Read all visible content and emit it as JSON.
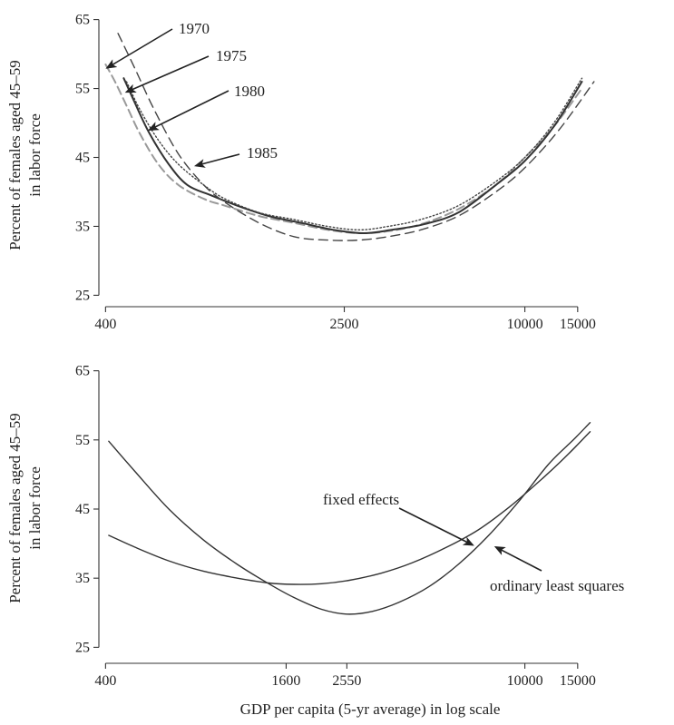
{
  "chart_data": [
    {
      "type": "line",
      "title": "",
      "ylabel": [
        "Percent of females aged 45–59",
        "in labor force"
      ],
      "xlabel": "",
      "x_scale": "log",
      "x_ticks": [
        400,
        2500,
        10000,
        15000
      ],
      "x_tick_labels": [
        "400",
        "2500",
        "10000",
        "15000"
      ],
      "y_ticks": [
        25,
        35,
        45,
        55,
        65
      ],
      "y_tick_labels": [
        "25",
        "35",
        "45",
        "55",
        "65"
      ],
      "xlim": [
        380,
        18000
      ],
      "ylim": [
        24,
        66
      ],
      "series": [
        {
          "name": "1970",
          "style": "dashed-gray",
          "x": [
            400,
            430,
            470,
            520,
            600,
            700,
            850,
            1000,
            1300,
            1700,
            2200,
            2800,
            3500,
            4500,
            6000,
            8000,
            10000,
            12500,
            15500
          ],
          "y": [
            58.5,
            56,
            52.5,
            48.5,
            44,
            41,
            39,
            38,
            36.5,
            35.5,
            34.5,
            34,
            34.3,
            35.3,
            37.5,
            41,
            45,
            49.5,
            55
          ]
        },
        {
          "name": "1975",
          "style": "solid-dark",
          "x": [
            460,
            500,
            560,
            650,
            750,
            900,
            1100,
            1400,
            1800,
            2300,
            2900,
            3600,
            4600,
            6000,
            8000,
            10000,
            12500,
            15500
          ],
          "y": [
            56.5,
            53,
            48.5,
            44,
            41,
            39.5,
            38,
            36.5,
            35.5,
            34.5,
            34,
            34.5,
            35.3,
            37,
            41,
            44.5,
            49.5,
            56
          ]
        },
        {
          "name": "1980",
          "style": "dotted",
          "x": [
            470,
            520,
            600,
            700,
            850,
            1000,
            1300,
            1700,
            2200,
            2800,
            3500,
            4500,
            6000,
            8000,
            10000,
            12500,
            15500
          ],
          "y": [
            56,
            52,
            47.5,
            44,
            41,
            39,
            37,
            36,
            35,
            34.5,
            35,
            36,
            38,
            41.5,
            45,
            50,
            56.5
          ]
        },
        {
          "name": "1985",
          "style": "dashed-dark",
          "x": [
            440,
            500,
            580,
            700,
            850,
            1000,
            1300,
            1700,
            2200,
            2800,
            3500,
            4500,
            6000,
            8000,
            10000,
            13000,
            17000
          ],
          "y": [
            63,
            58,
            52,
            45.5,
            41,
            38.5,
            35.5,
            33.5,
            33,
            33,
            33.5,
            34.5,
            36.5,
            40,
            43.5,
            49,
            56
          ]
        }
      ],
      "annotations": [
        {
          "text": "1970",
          "target_series": "1970",
          "target": [
            405,
            58
          ]
        },
        {
          "text": "1975",
          "target_series": "1975",
          "target": [
            470,
            54.5
          ]
        },
        {
          "text": "1980",
          "target_series": "1980",
          "target": [
            560,
            49
          ]
        },
        {
          "text": "1985",
          "target_series": "1985",
          "target": [
            800,
            43.8
          ]
        }
      ]
    },
    {
      "type": "line",
      "title": "",
      "ylabel": [
        "Percent of females aged 45–59",
        "in labor force"
      ],
      "xlabel": "GDP per capita (5-yr average) in log scale",
      "x_scale": "log",
      "x_ticks": [
        400,
        1600,
        2550,
        10000,
        15000
      ],
      "x_tick_labels": [
        "400",
        "1600",
        "2550",
        "10000",
        "15000"
      ],
      "y_ticks": [
        25,
        35,
        45,
        55,
        65
      ],
      "y_tick_labels": [
        "25",
        "35",
        "45",
        "55",
        "65"
      ],
      "xlim": [
        380,
        18000
      ],
      "ylim": [
        24,
        66
      ],
      "series": [
        {
          "name": "fixed effects",
          "style": "solid",
          "x": [
            410,
            500,
            650,
            850,
            1100,
            1400,
            1700,
            2100,
            2600,
            3300,
            4200,
            5500,
            7000,
            9000,
            11500,
            14000,
            16500
          ],
          "y": [
            41.2,
            39.5,
            37.5,
            36,
            35,
            34.3,
            34.1,
            34.2,
            34.7,
            35.7,
            37.2,
            39.5,
            42,
            45.5,
            49.5,
            53,
            56.2
          ]
        },
        {
          "name": "ordinary least squares",
          "style": "solid",
          "x": [
            410,
            500,
            650,
            850,
            1100,
            1400,
            1700,
            2100,
            2550,
            3100,
            3800,
            4800,
            6000,
            7500,
            9500,
            12000,
            14500,
            16500
          ],
          "y": [
            54.8,
            50.5,
            45,
            40.5,
            37,
            34.2,
            32.2,
            30.5,
            29.8,
            30.2,
            31.5,
            33.8,
            37,
            41,
            46,
            51.5,
            55,
            57.5
          ]
        }
      ],
      "annotations": [
        {
          "text": "fixed effects",
          "target_series": "fixed effects",
          "target": [
            6700,
            39.8
          ]
        },
        {
          "text": "ordinary least squares",
          "target_series": "ordinary least squares",
          "target": [
            8000,
            39.5
          ]
        }
      ]
    }
  ]
}
